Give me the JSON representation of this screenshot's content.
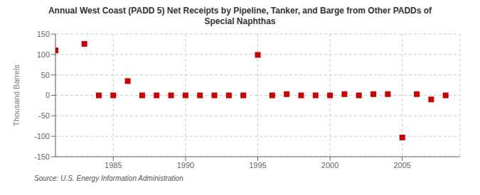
{
  "chart_data": {
    "type": "scatter",
    "title": "Annual West Coast (PADD 5) Net Receipts by Pipeline, Tanker, and Barge from Other PADDs of\nSpecial Naphthas",
    "y_label": "Thousand Barrels",
    "annotations": [
      "Source: U.S. Energy Information Administration"
    ],
    "x": [
      1981,
      1983,
      1984,
      1985,
      1986,
      1987,
      1988,
      1989,
      1990,
      1991,
      1992,
      1993,
      1994,
      1995,
      1996,
      1997,
      1998,
      1999,
      2000,
      2001,
      2002,
      2003,
      2004,
      2005,
      2006,
      2007,
      2008
    ],
    "values": [
      110,
      126,
      0,
      0,
      35,
      0,
      0,
      0,
      0,
      0,
      0,
      0,
      0,
      99,
      0,
      3,
      0,
      0,
      0,
      3,
      0,
      3,
      3,
      -103,
      3,
      -10,
      0
    ],
    "color": "#cc0000",
    "marker": "square",
    "xlim": [
      1981,
      2009
    ],
    "xticks": [
      1985,
      1990,
      1995,
      2000,
      2005
    ],
    "ylim": [
      -150,
      150
    ],
    "yticks": [
      -150,
      -100,
      -50,
      0,
      50,
      100,
      150
    ],
    "grid": true
  }
}
